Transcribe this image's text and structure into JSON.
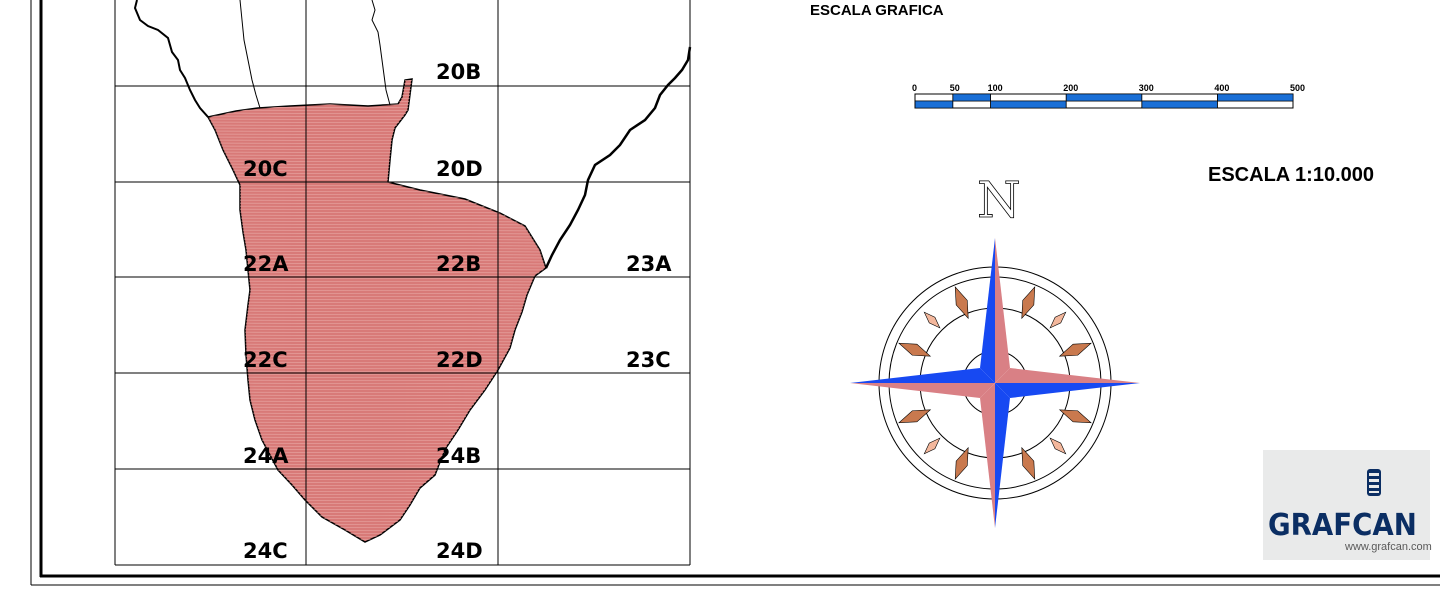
{
  "map": {
    "sheets": [
      "20B",
      "20C",
      "20D",
      "22A",
      "22B",
      "23A",
      "22C",
      "22D",
      "23C",
      "24A",
      "24B",
      "24C",
      "24D"
    ],
    "highlight_color": "#d87a78"
  },
  "scale_bar": {
    "title": "ESCALA GRAFICA",
    "ticks": [
      "0",
      "50",
      "100",
      "200",
      "300",
      "400",
      "500"
    ],
    "colors": {
      "fill": "#1a6fd6",
      "blank": "#ffffff"
    }
  },
  "scale_text": "ESCALA 1:10.000",
  "compass": {
    "north_label": "N",
    "colors": {
      "blue": "#1749f2",
      "pink": "#d98085",
      "ring": "#000000",
      "diamond": "#c9794e"
    }
  },
  "logo": {
    "wordmark": "GRAFCAN",
    "url": "www.grafcan.com"
  }
}
